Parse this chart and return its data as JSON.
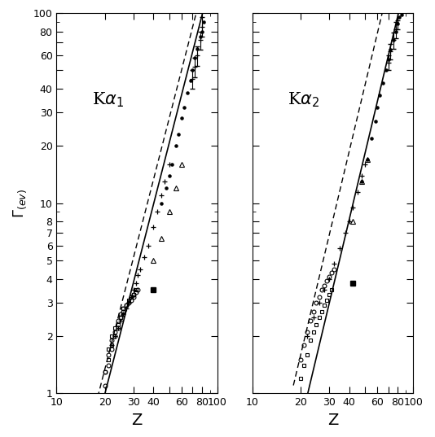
{
  "xlim": [
    10,
    100
  ],
  "ylim": [
    1,
    100
  ],
  "xlabel": "Z",
  "ylabel": "Γ_(ev)",
  "bg_color": "#ffffff",
  "line_color": "#000000",
  "n_solid": 3.3,
  "a_solid_factor": 1.0,
  "a_dashed_factor": 1.35,
  "n_solid2": 3.55,
  "a_solid2_factor": 0.7,
  "a_dashed2_factor": 1.6,
  "Z_circles_L": [
    20,
    20,
    21,
    21,
    22,
    22,
    23,
    23,
    24,
    24,
    25,
    25,
    26,
    26,
    27,
    28,
    29,
    30,
    30,
    31,
    32
  ],
  "G_circles_L": [
    1.1,
    1.3,
    1.4,
    1.6,
    1.7,
    1.9,
    2.0,
    2.1,
    2.2,
    2.4,
    2.5,
    2.6,
    2.7,
    2.8,
    2.9,
    3.0,
    3.1,
    3.2,
    3.3,
    3.4,
    3.5
  ],
  "Z_squares_L": [
    20,
    21,
    21,
    22,
    22,
    23,
    24,
    25,
    26,
    26,
    27,
    28,
    29,
    30,
    31
  ],
  "G_squares_L": [
    1.3,
    1.5,
    1.7,
    1.8,
    2.0,
    2.2,
    2.3,
    2.5,
    2.6,
    2.8,
    2.9,
    3.1,
    3.2,
    3.3,
    3.5
  ],
  "Z_plus_L": [
    22,
    23,
    24,
    25,
    26,
    27,
    28,
    29,
    30,
    31,
    32,
    33,
    35,
    37,
    40,
    42,
    45,
    47,
    50
  ],
  "G_plus_L": [
    1.8,
    2.0,
    2.2,
    2.4,
    2.6,
    2.8,
    3.0,
    3.2,
    3.5,
    3.8,
    4.2,
    4.5,
    5.2,
    6.0,
    7.5,
    9.0,
    11,
    13,
    16
  ],
  "Z_tri_L": [
    40,
    45,
    50,
    55,
    60
  ],
  "G_tri_L": [
    5.0,
    6.5,
    9.0,
    12,
    16
  ],
  "Z_dots_L": [
    45,
    48,
    50,
    52,
    55,
    57,
    60,
    62,
    65,
    68,
    70,
    72,
    75,
    78,
    80,
    82
  ],
  "G_dots_L": [
    10,
    12,
    14,
    16,
    20,
    23,
    28,
    32,
    38,
    44,
    50,
    58,
    65,
    75,
    80,
    90
  ],
  "Z_fsq_L": [
    40
  ],
  "G_fsq_L": [
    3.5
  ],
  "Z_err_L": [
    70,
    72,
    75,
    78,
    80
  ],
  "G_err_L": [
    45,
    52,
    60,
    72,
    85
  ],
  "G_err_yerr": [
    5,
    6,
    7,
    8,
    10
  ],
  "Z_circles_R": [
    20,
    21,
    22,
    23,
    24,
    25,
    26,
    27,
    28,
    29,
    30,
    31,
    32
  ],
  "G_circles_R": [
    1.5,
    1.8,
    2.1,
    2.4,
    2.7,
    3.0,
    3.2,
    3.5,
    3.7,
    3.9,
    4.1,
    4.3,
    4.5
  ],
  "Z_squares_R": [
    20,
    21,
    22,
    23,
    24,
    25,
    26,
    27,
    28,
    29,
    30,
    31
  ],
  "G_squares_R": [
    1.2,
    1.4,
    1.6,
    1.9,
    2.1,
    2.3,
    2.5,
    2.7,
    2.9,
    3.1,
    3.3,
    3.5
  ],
  "Z_plus_R": [
    22,
    24,
    26,
    28,
    30,
    32,
    35,
    38,
    40,
    42,
    45,
    48,
    50
  ],
  "G_plus_R": [
    2.0,
    2.5,
    3.0,
    3.5,
    4.0,
    4.8,
    5.8,
    7.0,
    8.0,
    9.5,
    11.5,
    14,
    16
  ],
  "Z_tri_R": [
    42,
    48,
    52
  ],
  "G_tri_R": [
    8.0,
    13,
    17
  ],
  "Z_dots_R": [
    48,
    52,
    55,
    58,
    60,
    62,
    65,
    68,
    70,
    72,
    75,
    78,
    80,
    82,
    85
  ],
  "G_dots_R": [
    13,
    17,
    22,
    27,
    32,
    37,
    43,
    50,
    57,
    64,
    72,
    80,
    88,
    95,
    98
  ],
  "Z_fsq_R": [
    42
  ],
  "G_fsq_R": [
    3.8
  ],
  "Z_err_R": [
    70,
    72,
    75,
    78,
    80
  ],
  "G_err_R": [
    55,
    63,
    72,
    82,
    92
  ],
  "G_err_yerr_R": [
    5,
    6,
    7,
    8,
    10
  ]
}
